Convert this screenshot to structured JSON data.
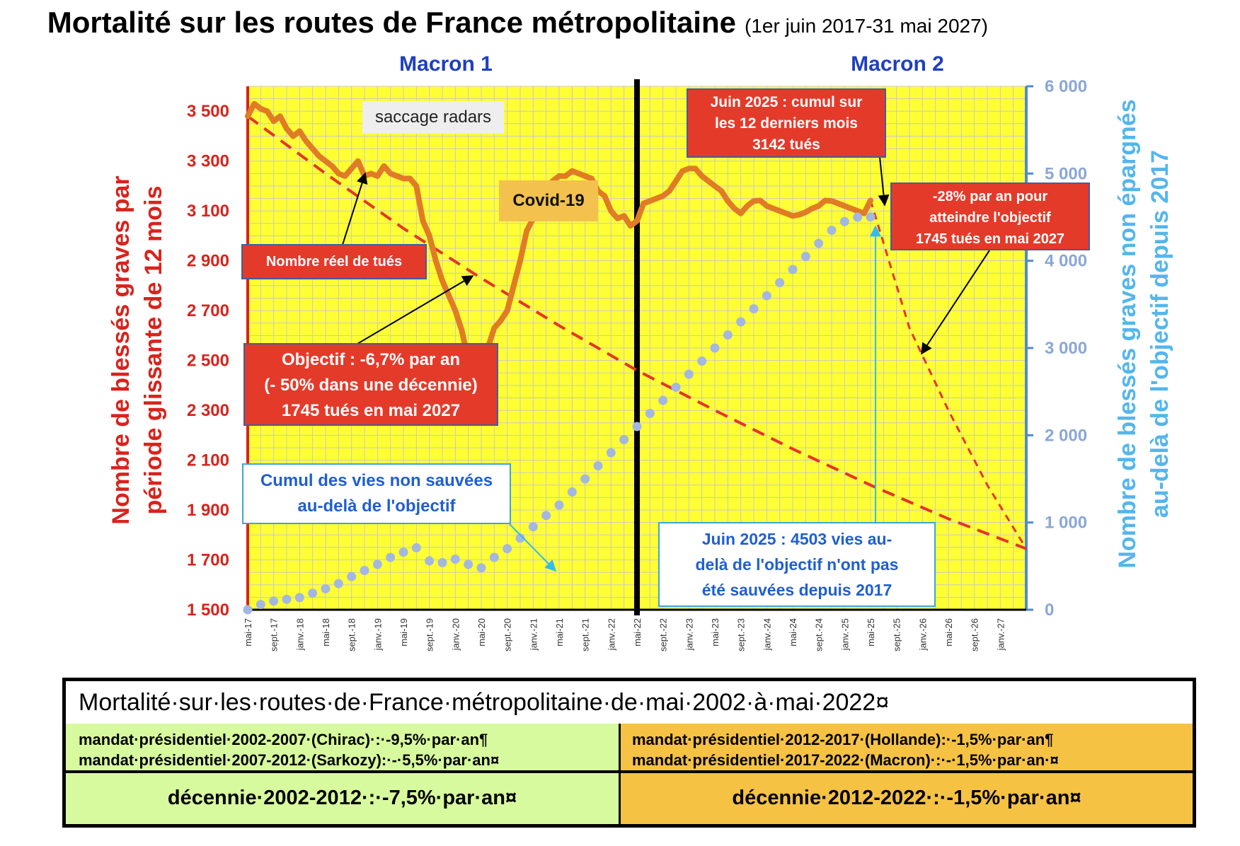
{
  "title": "Mortalité sur les routes de France métropolitaine",
  "title_period": "(1er juin 2017-31 mai 2027)",
  "period_labels": {
    "macron1": "Macron 1",
    "macron2": "Macron 2"
  },
  "axes": {
    "y_left_label_line1": "Nombre de blessés graves par",
    "y_left_label_line2": "période glissante de 12 mois",
    "y_right_label_line1": "Nombre de blessés graves non épargnés",
    "y_right_label_line2": "au-delà de l'objectif depuis 2017"
  },
  "colors": {
    "plot_bg": "#ffff33",
    "actual_line": "#e07b26",
    "objective_line": "#e53528",
    "cumulative_dots": "#a3b7e0",
    "left_axis": "#d8231c",
    "right_axis": "#4f8ad0",
    "right_label": "#53b6ec",
    "period_label": "#1f3fbf"
  },
  "annotations": {
    "saccage": "saccage radars",
    "covid": "Covid-19",
    "reel": "Nombre réel de tués",
    "objectif_1": "Objectif : -6,7% par an",
    "objectif_2": "(- 50% dans une décennie)",
    "objectif_3": "1745 tués en mai 2027",
    "cumul_1": "Cumul des vies non sauvées",
    "cumul_2": "au-delà de l'objectif",
    "juin_cumul_1": "Juin 2025 : cumul sur",
    "juin_cumul_2": "les 12 derniers mois",
    "juin_cumul_3": "3142 tués",
    "rate_1": "-28% par an pour",
    "rate_2": "atteindre l'objectif",
    "rate_3": "1745 tués en mai 2027",
    "juin_vies_1": "Juin 2025 : 4503 vies au-",
    "juin_vies_2": "delà de l'objectif n'ont pas",
    "juin_vies_3": "été sauvées depuis 2017"
  },
  "summary_table": {
    "header": "Mortalité·sur·les·routes·de·France·métropolitaine·de·mai·2002·à·mai·2022¤",
    "left_line1": "mandat·présidentiel·2002-2007·(Chirac)·:·-9,5%·par·an¶",
    "left_line2": "mandat·présidentiel·2007-2012·(Sarkozy):·-·5,5%·par·an¤",
    "right_line1": "mandat·présidentiel·2012-2017·(Hollande):·-1,5%·par·an¶",
    "right_line2": "mandat·présidentiel·2017-2022·(Macron)·:·-·1,5%·par·an·¤",
    "left_decade": "décennie·2002-2012·:·-7,5%·par·an¤",
    "right_decade": "décennie·2012-2022·:·-1,5%·par·an¤"
  },
  "chart_data": {
    "type": "line",
    "x_tick_labels": [
      "mai-17",
      "sept.-17",
      "janv.-18",
      "mai-18",
      "sept.-18",
      "janv.-19",
      "mai-19",
      "sept.-19",
      "janv.-20",
      "mai-20",
      "sept.-20",
      "janv.-21",
      "mai-21",
      "sept.-21",
      "janv.-22",
      "mai-22",
      "sept.-22",
      "janv.-23",
      "mai-23",
      "sept.-23",
      "janv.-24",
      "mai-24",
      "sept.-24",
      "janv.-25",
      "mai-25",
      "sept.-25",
      "janv.-26",
      "mai-26",
      "sept.-26",
      "janv.-27"
    ],
    "x_range_months": [
      0,
      120
    ],
    "y_left": {
      "ticks": [
        "1 500",
        "1 700",
        "1 900",
        "2 100",
        "2 300",
        "2 500",
        "2 700",
        "2 900",
        "3 100",
        "3 300",
        "3 500"
      ],
      "min": 1500,
      "max": 3600
    },
    "y_right": {
      "ticks": [
        "0",
        "1 000",
        "2 000",
        "3 000",
        "4 000",
        "5 000",
        "6 000"
      ],
      "min": 0,
      "max": 6000
    },
    "grid": true,
    "macron2_start_month": 60,
    "series": [
      {
        "name": "Nombre réel de tués",
        "axis": "left",
        "x": [
          0,
          1,
          2,
          3,
          4,
          5,
          6,
          7,
          8,
          9,
          10,
          11,
          12,
          13,
          14,
          15,
          16,
          17,
          18,
          19,
          20,
          21,
          22,
          23,
          24,
          25,
          26,
          27,
          28,
          29,
          30,
          31,
          32,
          33,
          34,
          35,
          36,
          37,
          38,
          39,
          40,
          41,
          42,
          43,
          44,
          45,
          46,
          47,
          48,
          49,
          50,
          51,
          52,
          53,
          54,
          55,
          56,
          57,
          58,
          59,
          60,
          61,
          62,
          63,
          64,
          65,
          66,
          67,
          68,
          69,
          70,
          71,
          72,
          73,
          74,
          75,
          76,
          77,
          78,
          79,
          80,
          81,
          82,
          83,
          84,
          85,
          86,
          87,
          88,
          89,
          90,
          91,
          92,
          93,
          94,
          95,
          96
        ],
        "y": [
          3480,
          3530,
          3510,
          3500,
          3460,
          3480,
          3430,
          3400,
          3420,
          3380,
          3350,
          3320,
          3300,
          3280,
          3250,
          3240,
          3270,
          3300,
          3240,
          3250,
          3240,
          3280,
          3250,
          3240,
          3230,
          3230,
          3200,
          3060,
          3000,
          2900,
          2820,
          2760,
          2700,
          2620,
          2500,
          2430,
          2530,
          2550,
          2630,
          2660,
          2700,
          2800,
          2900,
          3020,
          3070,
          3120,
          3190,
          3220,
          3240,
          3240,
          3260,
          3250,
          3240,
          3230,
          3180,
          3160,
          3100,
          3070,
          3080,
          3040,
          3060,
          3130,
          3140,
          3150,
          3160,
          3180,
          3220,
          3260,
          3270,
          3270,
          3240,
          3220,
          3200,
          3180,
          3140,
          3110,
          3090,
          3120,
          3140,
          3142,
          3120,
          3110,
          3100,
          3090,
          3080,
          3085,
          3095,
          3110,
          3120,
          3142,
          3140,
          3130,
          3120,
          3110,
          3100,
          3090,
          3142
        ]
      },
      {
        "name": "Objectif",
        "axis": "left",
        "x": [
          0,
          12,
          24,
          36,
          48,
          60,
          72,
          84,
          96,
          108,
          120
        ],
        "y": [
          3480,
          3250,
          3030,
          2830,
          2640,
          2460,
          2300,
          2145,
          2000,
          1865,
          1745
        ]
      },
      {
        "name": "-28% par an",
        "axis": "left",
        "x": [
          96,
          102,
          108,
          114,
          120
        ],
        "y": [
          3142,
          2630,
          2300,
          2000,
          1745
        ]
      },
      {
        "name": "Cumul des vies non sauvées",
        "axis": "right",
        "x": [
          0,
          2,
          4,
          6,
          8,
          10,
          12,
          14,
          16,
          18,
          20,
          22,
          24,
          26,
          28,
          30,
          32,
          34,
          36,
          38,
          40,
          42,
          44,
          46,
          48,
          50,
          52,
          54,
          56,
          58,
          60,
          62,
          64,
          66,
          68,
          70,
          72,
          74,
          76,
          78,
          80,
          82,
          84,
          86,
          88,
          90,
          92,
          94,
          96
        ],
        "y": [
          0,
          60,
          100,
          120,
          140,
          190,
          240,
          300,
          380,
          450,
          520,
          600,
          660,
          710,
          560,
          540,
          580,
          520,
          480,
          600,
          700,
          820,
          950,
          1080,
          1200,
          1350,
          1500,
          1650,
          1800,
          1950,
          2100,
          2250,
          2400,
          2550,
          2700,
          2850,
          3000,
          3150,
          3300,
          3450,
          3600,
          3750,
          3900,
          4050,
          4200,
          4350,
          4450,
          4500,
          4503
        ]
      }
    ]
  }
}
